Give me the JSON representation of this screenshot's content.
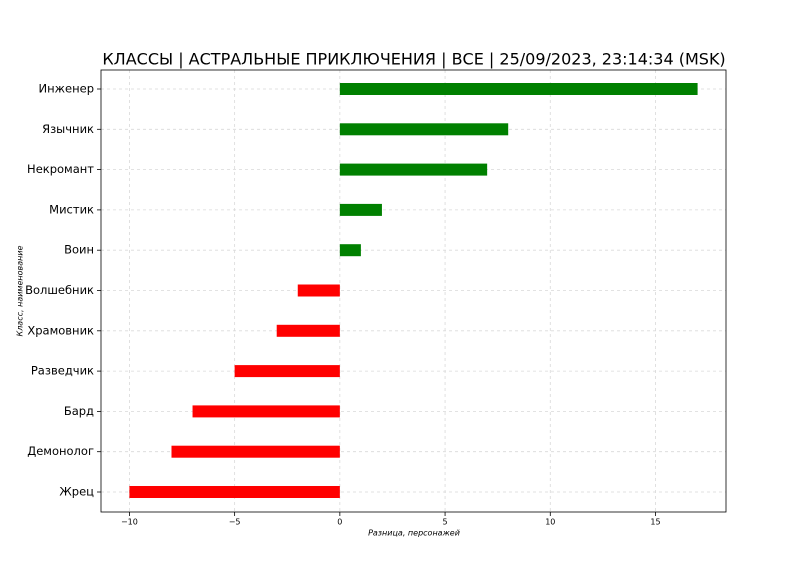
{
  "chart_data": {
    "type": "barh",
    "title": "КЛАССЫ | АСТРАЛЬНЫЕ ПРИКЛЮЧЕНИЯ | ВСЕ | 25/09/2023, 23:14:34 (MSK)",
    "xlabel": "Разница, персонажей",
    "ylabel": "Класс, наименование",
    "categories": [
      "Инженер",
      "Язычник",
      "Некромант",
      "Мистик",
      "Воин",
      "Волшебник",
      "Храмовник",
      "Разведчик",
      "Бард",
      "Демонолог",
      "Жрец"
    ],
    "values": [
      17,
      8,
      7,
      2,
      1,
      -2,
      -3,
      -5,
      -7,
      -8,
      -10
    ],
    "colors": [
      "#008000",
      "#008000",
      "#008000",
      "#008000",
      "#008000",
      "#ff0000",
      "#ff0000",
      "#ff0000",
      "#ff0000",
      "#ff0000",
      "#ff0000"
    ],
    "xlim": [
      -11.35,
      18.35
    ],
    "xticks": [
      {
        "value": -10,
        "label": "−10"
      },
      {
        "value": -5,
        "label": "−5"
      },
      0,
      5,
      10,
      15
    ],
    "grid": true
  }
}
